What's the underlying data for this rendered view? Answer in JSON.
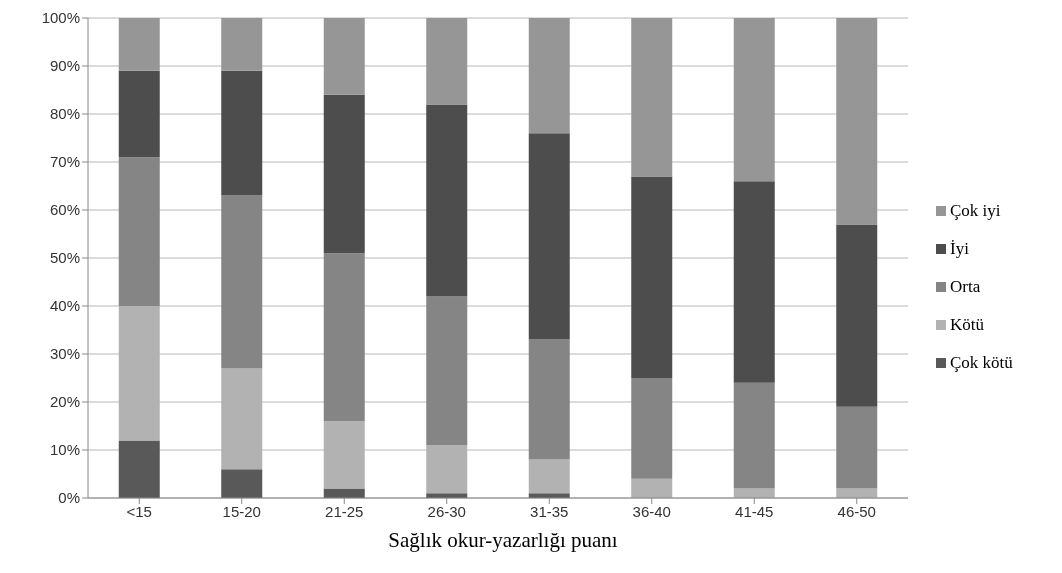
{
  "chart_data": {
    "type": "bar",
    "stacked": true,
    "xlabel": "Sağlık okur-yazarlığı puanı",
    "categories": [
      "<15",
      "15-20",
      "21-25",
      "26-30",
      "31-35",
      "36-40",
      "41-45",
      "46-50"
    ],
    "series": [
      {
        "name": "Çok kötü",
        "color": "#595959",
        "values": [
          12,
          6,
          2,
          1,
          1,
          0,
          0,
          0
        ]
      },
      {
        "name": "Kötü",
        "color": "#b2b2b2",
        "values": [
          28,
          21,
          14,
          10,
          7,
          4,
          2,
          2
        ]
      },
      {
        "name": "Orta",
        "color": "#858585",
        "values": [
          31,
          36,
          35,
          31,
          25,
          21,
          22,
          17
        ]
      },
      {
        "name": "İyi",
        "color": "#4d4d4d",
        "values": [
          18,
          26,
          33,
          40,
          43,
          42,
          42,
          38
        ]
      },
      {
        "name": "Çok iyi",
        "color": "#969696",
        "values": [
          11,
          11,
          16,
          18,
          24,
          33,
          34,
          43
        ]
      }
    ],
    "ylim": [
      0,
      100
    ],
    "yticks": [
      {
        "value": 0,
        "label": "0%"
      },
      {
        "value": 10,
        "label": "10%"
      },
      {
        "value": 20,
        "label": "20%"
      },
      {
        "value": 30,
        "label": "30%"
      },
      {
        "value": 40,
        "label": "40%"
      },
      {
        "value": 50,
        "label": "50%"
      },
      {
        "value": 60,
        "label": "60%"
      },
      {
        "value": 70,
        "label": "70%"
      },
      {
        "value": 80,
        "label": "80%"
      },
      {
        "value": 90,
        "label": "90%"
      },
      {
        "value": 100,
        "label": "100%"
      }
    ],
    "grid": "y",
    "legend": "right"
  }
}
